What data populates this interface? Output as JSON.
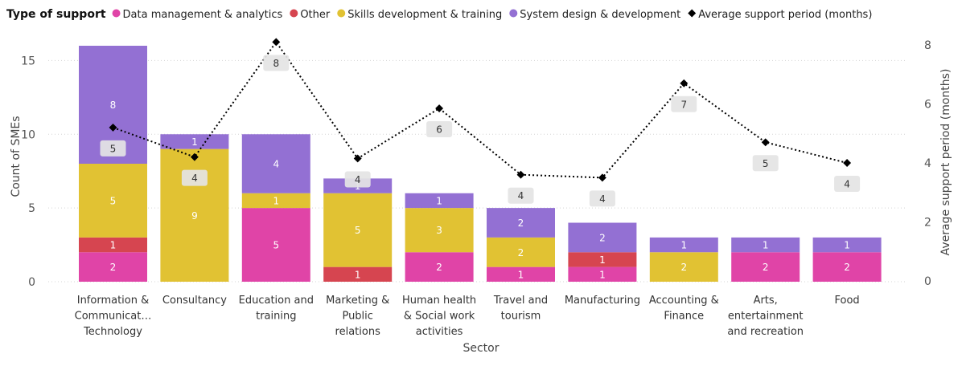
{
  "legend": {
    "title": "Type of support",
    "items": [
      {
        "label": "Data management & analytics",
        "color": "#E044A7",
        "marker": "circle"
      },
      {
        "label": "Other",
        "color": "#D64550",
        "marker": "circle"
      },
      {
        "label": "Skills development & training",
        "color": "#E1C233",
        "marker": "circle"
      },
      {
        "label": "System design & development",
        "color": "#9370D3",
        "marker": "circle"
      },
      {
        "label": "Average support period (months)",
        "color": "#000000",
        "marker": "diamond"
      }
    ]
  },
  "chart_data": {
    "type": "bar",
    "stacked": true,
    "categories": [
      "Information & Communicat… Technology",
      "Consultancy",
      "Education and training",
      "Marketing & Public relations",
      "Human health & Social work activities",
      "Travel and tourism",
      "Manufacturing",
      "Accounting & Finance",
      "Arts, entertainment and recreation",
      "Food"
    ],
    "category_lines": [
      [
        "Information &",
        "Communicat…",
        "Technology"
      ],
      [
        "Consultancy"
      ],
      [
        "Education and",
        "training"
      ],
      [
        "Marketing &",
        "Public",
        "relations"
      ],
      [
        "Human health",
        "& Social work",
        "activities"
      ],
      [
        "Travel and",
        "tourism"
      ],
      [
        "Manufacturing"
      ],
      [
        "Accounting &",
        "Finance"
      ],
      [
        "Arts,",
        "entertainment",
        "and recreation"
      ],
      [
        "Food"
      ]
    ],
    "series": [
      {
        "name": "Data management & analytics",
        "color": "#E044A7",
        "values": [
          2,
          0,
          5,
          0,
          2,
          1,
          1,
          0,
          2,
          2
        ]
      },
      {
        "name": "Other",
        "color": "#D64550",
        "values": [
          1,
          0,
          0,
          1,
          0,
          0,
          1,
          0,
          0,
          0
        ]
      },
      {
        "name": "Skills development & training",
        "color": "#E1C233",
        "values": [
          5,
          9,
          1,
          5,
          3,
          2,
          0,
          2,
          0,
          0
        ]
      },
      {
        "name": "System design & development",
        "color": "#9370D3",
        "values": [
          8,
          1,
          4,
          1,
          1,
          2,
          2,
          1,
          1,
          1
        ]
      }
    ],
    "line_series": {
      "name": "Average support period (months)",
      "color": "#000000",
      "values": [
        5.2,
        4.2,
        8.1,
        4.15,
        5.85,
        3.6,
        3.5,
        6.7,
        4.7,
        4.0
      ],
      "labels": [
        "5",
        "4",
        "8",
        "4",
        "6",
        "4",
        "4",
        "7",
        "5",
        "4"
      ]
    },
    "xlabel": "Sector",
    "ylabel": "Count of SMEs",
    "y2label": "Average support period (months)",
    "ylim": [
      0,
      16
    ],
    "y2lim": [
      0,
      8.16
    ],
    "yticks": [
      0,
      5,
      10,
      15
    ],
    "y2ticks": [
      0,
      2,
      4,
      6,
      8
    ],
    "grid": true,
    "legend_position": "top-left"
  }
}
